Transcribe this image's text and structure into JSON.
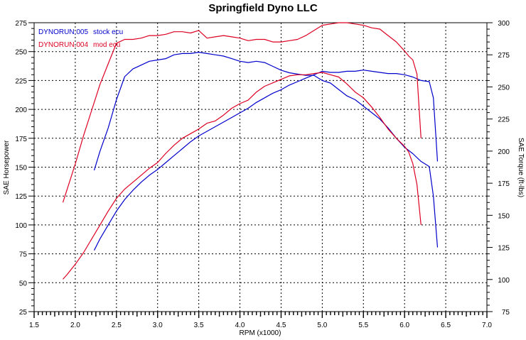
{
  "chart_data": {
    "type": "line",
    "title": "Springfield Dyno LLC",
    "xlabel": "RPM (x1000)",
    "ylabel_left": "SAE Horsepower",
    "ylabel_right": "SAE Torque (ft-lbs)",
    "xlim": [
      1.5,
      7.0
    ],
    "ylim_left": [
      25,
      275
    ],
    "ylim_right": [
      75,
      300
    ],
    "x_ticks": [
      "1.5",
      "2.0",
      "2.5",
      "3.0",
      "3.5",
      "4.0",
      "4.5",
      "5.0",
      "5.5",
      "6.0",
      "6.5",
      "7.0"
    ],
    "y_ticks_left": [
      "25",
      "50",
      "75",
      "100",
      "125",
      "150",
      "175",
      "200",
      "225",
      "250",
      "275"
    ],
    "y_ticks_right": [
      "75",
      "100",
      "125",
      "150",
      "175",
      "200",
      "225",
      "250",
      "275",
      "300"
    ],
    "grid": true,
    "legend_position": "top-left",
    "legend": [
      {
        "run": "DYNORUN.005",
        "desc": "stock ecu",
        "color": "#0000cc"
      },
      {
        "run": "DYNORUN.004",
        "desc": "mod ecu",
        "color": "#dd0022"
      }
    ],
    "series": [
      {
        "name": "DYNORUN.005 stock ecu",
        "measure": "SAE Horsepower",
        "axis": "left",
        "color": "#0000cc",
        "x": [
          2.23,
          2.3,
          2.4,
          2.5,
          2.6,
          2.7,
          2.8,
          2.9,
          3.0,
          3.1,
          3.2,
          3.3,
          3.4,
          3.5,
          3.6,
          3.7,
          3.8,
          3.9,
          4.0,
          4.1,
          4.2,
          4.3,
          4.4,
          4.5,
          4.6,
          4.7,
          4.8,
          4.9,
          5.0,
          5.1,
          5.2,
          5.3,
          5.4,
          5.5,
          5.6,
          5.7,
          5.8,
          5.9,
          6.0,
          6.1,
          6.2,
          6.3,
          6.35,
          6.4
        ],
        "values": [
          78,
          88,
          100,
          112,
          122,
          130,
          137,
          143,
          148,
          154,
          160,
          166,
          172,
          177,
          181,
          185,
          189,
          193,
          197,
          201,
          206,
          210,
          214,
          217,
          221,
          224,
          227,
          230,
          233,
          232,
          232,
          233,
          233,
          234,
          233,
          232,
          231,
          231,
          230,
          228,
          225,
          224,
          210,
          155
        ]
      },
      {
        "name": "DYNORUN.005 stock ecu",
        "measure": "SAE Torque",
        "axis": "right",
        "color": "#0000cc",
        "x": [
          2.23,
          2.3,
          2.4,
          2.5,
          2.6,
          2.7,
          2.8,
          2.9,
          3.0,
          3.1,
          3.2,
          3.3,
          3.4,
          3.5,
          3.6,
          3.7,
          3.8,
          3.9,
          4.0,
          4.1,
          4.2,
          4.3,
          4.4,
          4.5,
          4.6,
          4.7,
          4.8,
          4.9,
          5.0,
          5.1,
          5.2,
          5.3,
          5.4,
          5.5,
          5.6,
          5.7,
          5.8,
          5.9,
          6.0,
          6.1,
          6.2,
          6.3,
          6.35,
          6.4
        ],
        "values": [
          185,
          200,
          218,
          240,
          258,
          264,
          267,
          270,
          271,
          272,
          275,
          276,
          276,
          277,
          276,
          275,
          274,
          272,
          270,
          269,
          270,
          269,
          266,
          263,
          261,
          260,
          259,
          259,
          255,
          253,
          248,
          243,
          240,
          235,
          230,
          225,
          218,
          210,
          203,
          198,
          192,
          188,
          165,
          125
        ]
      },
      {
        "name": "DYNORUN.004 mod ecu",
        "measure": "SAE Horsepower",
        "axis": "left",
        "color": "#dd0022",
        "x": [
          1.85,
          1.9,
          2.0,
          2.1,
          2.2,
          2.3,
          2.4,
          2.5,
          2.6,
          2.7,
          2.8,
          2.9,
          3.0,
          3.1,
          3.2,
          3.3,
          3.4,
          3.5,
          3.6,
          3.7,
          3.8,
          3.9,
          4.0,
          4.1,
          4.2,
          4.3,
          4.4,
          4.5,
          4.6,
          4.7,
          4.8,
          4.9,
          5.0,
          5.1,
          5.2,
          5.3,
          5.4,
          5.5,
          5.6,
          5.7,
          5.8,
          5.9,
          6.0,
          6.05,
          6.1,
          6.15,
          6.2
        ],
        "values": [
          53,
          57,
          66,
          76,
          88,
          100,
          112,
          123,
          131,
          137,
          143,
          149,
          154,
          162,
          169,
          175,
          179,
          183,
          188,
          190,
          195,
          201,
          205,
          208,
          215,
          220,
          223,
          226,
          229,
          230,
          230,
          231,
          232,
          230,
          228,
          222,
          215,
          210,
          202,
          193,
          183,
          175,
          168,
          163,
          153,
          135,
          100
        ]
      },
      {
        "name": "DYNORUN.004 mod ecu",
        "measure": "SAE Torque",
        "axis": "right",
        "color": "#dd0022",
        "x": [
          1.85,
          1.9,
          2.0,
          2.1,
          2.2,
          2.3,
          2.4,
          2.5,
          2.6,
          2.7,
          2.8,
          2.9,
          3.0,
          3.1,
          3.2,
          3.3,
          3.4,
          3.5,
          3.6,
          3.7,
          3.8,
          3.9,
          4.0,
          4.1,
          4.2,
          4.3,
          4.4,
          4.5,
          4.6,
          4.7,
          4.8,
          4.9,
          5.0,
          5.1,
          5.2,
          5.3,
          5.4,
          5.5,
          5.6,
          5.7,
          5.8,
          5.9,
          6.0,
          6.05,
          6.1,
          6.15,
          6.2
        ],
        "values": [
          160,
          170,
          190,
          212,
          232,
          252,
          268,
          284,
          287,
          287,
          288,
          290,
          290,
          291,
          293,
          293,
          292,
          294,
          288,
          289,
          290,
          289,
          288,
          286,
          287,
          287,
          285,
          285,
          286,
          287,
          290,
          294,
          298,
          299,
          300,
          300,
          299,
          298,
          296,
          295,
          290,
          285,
          278,
          274,
          271,
          260,
          210
        ]
      }
    ]
  }
}
